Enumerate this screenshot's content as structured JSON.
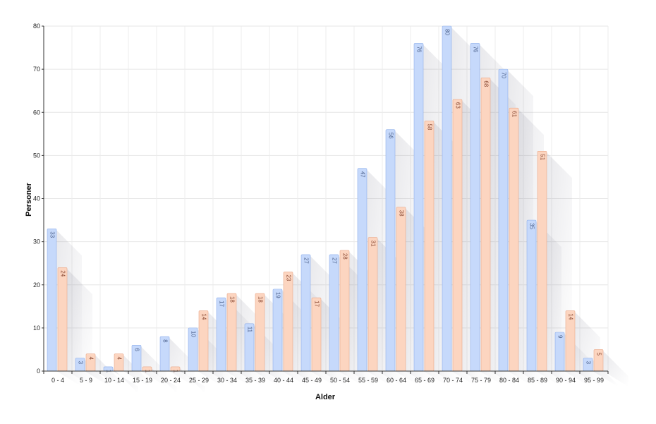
{
  "chart_data": {
    "type": "bar",
    "title": "",
    "xlabel": "Alder",
    "ylabel": "Personer",
    "ylim": [
      0,
      80
    ],
    "yticks": [
      0,
      10,
      20,
      30,
      40,
      50,
      60,
      70,
      80
    ],
    "grid": true,
    "categories": [
      "0 - 4",
      "5 - 9",
      "10 - 14",
      "15 - 19",
      "20 - 24",
      "25 - 29",
      "30 - 34",
      "35 - 39",
      "40 - 44",
      "45 - 49",
      "50 - 54",
      "55 - 59",
      "60 - 64",
      "65 - 69",
      "70 - 74",
      "75 - 79",
      "80 - 84",
      "85 - 89",
      "90 - 94",
      "95 - 99"
    ],
    "series": [
      {
        "name": "",
        "color": "#c6d9fb",
        "stroke": "#8fb0ec",
        "label_color": "#4a5f8a",
        "values": [
          33,
          3,
          1,
          6,
          8,
          10,
          17,
          11,
          19,
          27,
          27,
          47,
          56,
          76,
          80,
          76,
          70,
          35,
          9,
          3
        ]
      },
      {
        "name": "",
        "color": "#fcd5c0",
        "stroke": "#eaa98a",
        "label_color": "#8a4a34",
        "values": [
          24,
          4,
          4,
          1,
          1,
          14,
          18,
          18,
          23,
          17,
          28,
          31,
          38,
          58,
          63,
          68,
          61,
          51,
          14,
          5
        ]
      }
    ]
  }
}
